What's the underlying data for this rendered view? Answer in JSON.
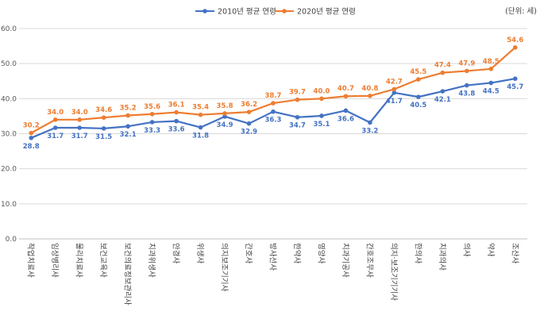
{
  "chart_data": {
    "type": "line",
    "unit_label": "(단위: 세)",
    "categories": [
      "작업치료사",
      "임상병리사",
      "물리치료사",
      "보건교육사",
      "보건의료정보관리사",
      "치과위생사",
      "안경사",
      "위생사",
      "의지보조기기사",
      "간호사",
      "방사선사",
      "한약사",
      "영양사",
      "치과기공사",
      "간호조무사",
      "의지·보조기기기사",
      "한의사",
      "치과의사",
      "의사",
      "약사",
      "조산사"
    ],
    "ylim": [
      0,
      60
    ],
    "yticks": [
      "0.0",
      "10.0",
      "20.0",
      "30.0",
      "40.0",
      "50.0",
      "60.0"
    ],
    "grid": true,
    "legend_position": "top-center",
    "series": [
      {
        "name": "2010년 평균 연령",
        "color": "#4472C4",
        "values": [
          28.8,
          31.7,
          31.7,
          31.5,
          32.1,
          33.3,
          33.6,
          31.8,
          34.9,
          32.9,
          36.3,
          34.7,
          35.1,
          36.6,
          33.2,
          41.7,
          40.5,
          42.1,
          43.8,
          44.5,
          45.7
        ]
      },
      {
        "name": "2020년 평균 연령",
        "color": "#ED7D31",
        "values": [
          30.2,
          34.0,
          34.0,
          34.6,
          35.2,
          35.6,
          36.1,
          35.4,
          35.8,
          36.2,
          38.7,
          39.7,
          40.0,
          40.7,
          40.8,
          42.7,
          45.5,
          47.4,
          47.9,
          48.5,
          54.6
        ]
      }
    ]
  }
}
